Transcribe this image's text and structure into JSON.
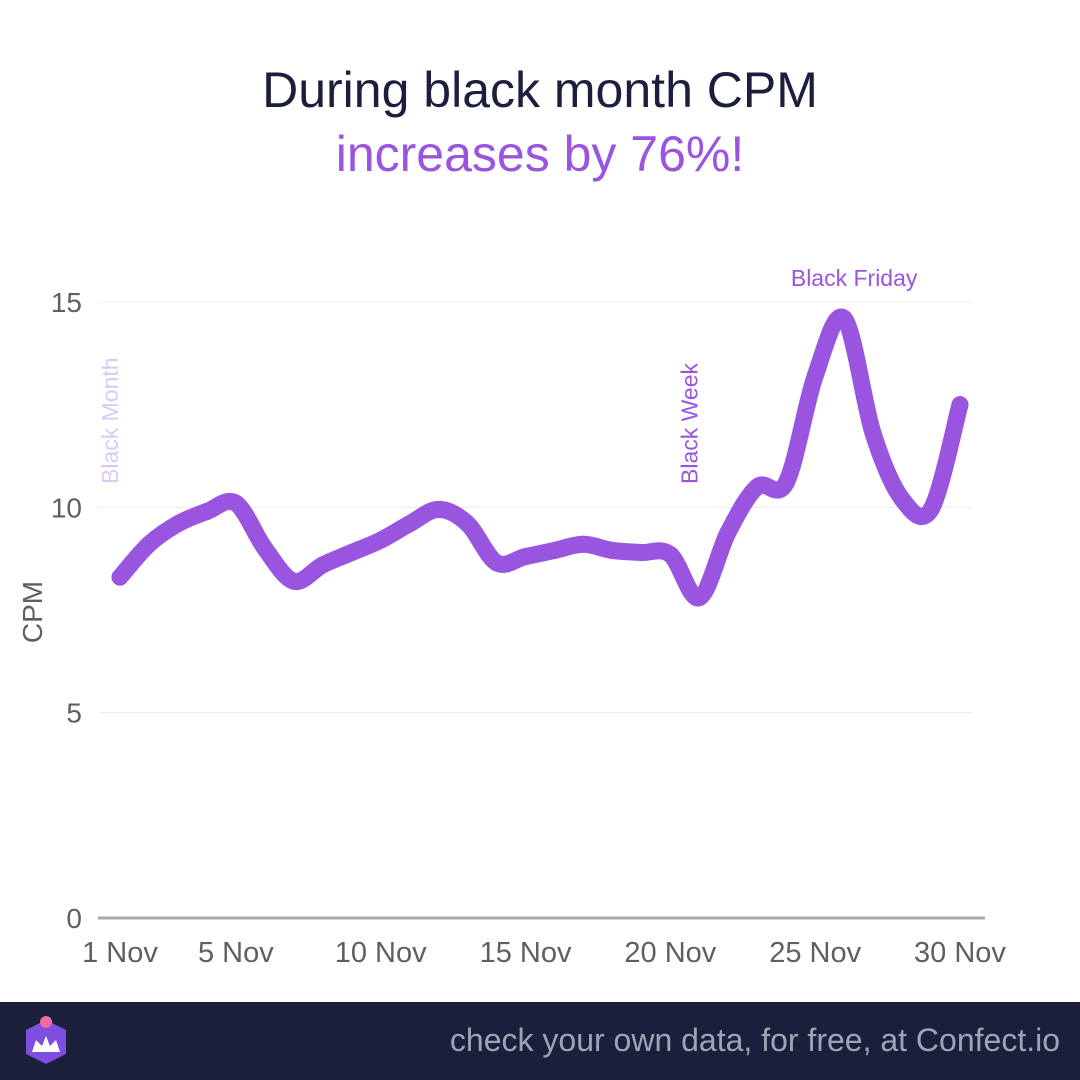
{
  "title": {
    "line1": "During black month CPM",
    "line2": "increases by 76%!"
  },
  "colors": {
    "title": "#1b1f3b",
    "accent": "#9a55e0",
    "black_month_label": "#dcc8f2",
    "axis": "#a7a7a7",
    "grid": "#ececec",
    "tick_text": "#5f5f5f",
    "footer_bg": "#1b1f3b",
    "footer_text": "#9fa3b3"
  },
  "chart_data": {
    "type": "line",
    "ylabel": "CPM",
    "xlabel": "",
    "ylim": [
      0,
      15
    ],
    "yticks": [
      0,
      5,
      10,
      15
    ],
    "xlim": [
      1,
      30
    ],
    "xticks": [
      {
        "day": 1,
        "label": "1 Nov"
      },
      {
        "day": 5,
        "label": "5 Nov"
      },
      {
        "day": 10,
        "label": "10 Nov"
      },
      {
        "day": 15,
        "label": "15 Nov"
      },
      {
        "day": 20,
        "label": "20 Nov"
      },
      {
        "day": 25,
        "label": "25 Nov"
      },
      {
        "day": 30,
        "label": "30 Nov"
      }
    ],
    "grid": true,
    "series": [
      {
        "x": [
          1,
          2,
          3,
          4,
          5,
          6,
          7,
          8,
          9,
          10,
          11,
          12,
          13,
          14,
          15,
          16,
          17,
          18,
          19,
          20,
          21,
          22,
          23,
          24,
          25,
          26,
          27,
          28,
          29,
          30
        ],
        "y": [
          8.3,
          9.1,
          9.6,
          9.9,
          10.1,
          9.0,
          8.2,
          8.6,
          8.9,
          9.2,
          9.6,
          9.95,
          9.6,
          8.65,
          8.8,
          8.95,
          9.1,
          8.95,
          8.9,
          8.85,
          7.8,
          9.4,
          10.5,
          10.6,
          13.2,
          14.6,
          11.8,
          10.2,
          9.95,
          12.5
        ]
      }
    ],
    "annotations": [
      {
        "text": "Black Month",
        "x": 1,
        "orientation": "vertical",
        "color": "#dcc8f2"
      },
      {
        "text": "Black Week",
        "x": 21,
        "orientation": "vertical",
        "color": "#9a55e0"
      },
      {
        "text": "Black Friday",
        "x": 26,
        "orientation": "horizontal",
        "color": "#9a55e0"
      }
    ]
  },
  "footer": {
    "text": "check your own data, for free, at Confect.io"
  }
}
